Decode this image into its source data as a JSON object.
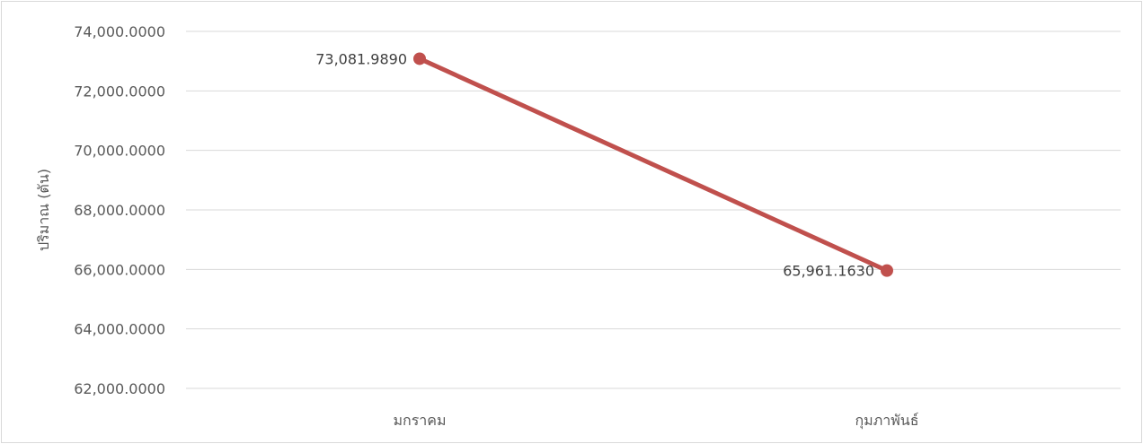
{
  "chart_data": {
    "type": "line",
    "title": "",
    "xlabel": "",
    "ylabel": "ปริมาณ (ตัน)",
    "categories": [
      "มกราคม",
      "กุมภาพันธ์"
    ],
    "series": [
      {
        "values": [
          73081.989,
          65961.163
        ],
        "labels": [
          "73,081.9890",
          "65,961.1630"
        ],
        "color": "#c0504d"
      }
    ],
    "ylim": [
      62000,
      74000
    ],
    "yticks": [
      62000,
      64000,
      66000,
      68000,
      70000,
      72000,
      74000
    ],
    "ytick_labels": [
      "62,000.0000",
      "64,000.0000",
      "66,000.0000",
      "68,000.0000",
      "70,000.0000",
      "72,000.0000",
      "74,000.0000"
    ],
    "grid": true,
    "gridline_color": "#d9d9d9",
    "legend": "none"
  }
}
